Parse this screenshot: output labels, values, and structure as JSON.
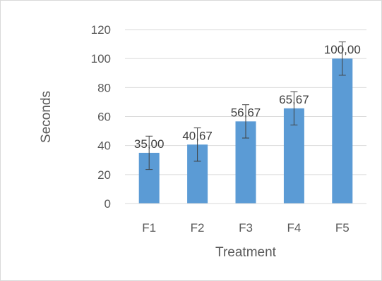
{
  "chart_data": {
    "type": "bar",
    "categories": [
      "F1",
      "F2",
      "F3",
      "F4",
      "F5"
    ],
    "values": [
      35.0,
      40.67,
      56.67,
      65.67,
      100.0
    ],
    "value_labels": [
      "35,00",
      "40,67",
      "56,67",
      "65,67",
      "100,00"
    ],
    "error_bars": [
      11.5,
      11.5,
      11.5,
      11.5,
      11.5
    ],
    "xlabel": "Treatment",
    "ylabel": "Seconds",
    "ylim": [
      0,
      120
    ],
    "yticks": [
      0,
      20,
      40,
      60,
      80,
      100,
      120
    ],
    "grid": true,
    "legend": "none",
    "bar_color": "#5b9bd5",
    "grid_color": "#d9d9d9",
    "error_bar_color": "#404040"
  }
}
